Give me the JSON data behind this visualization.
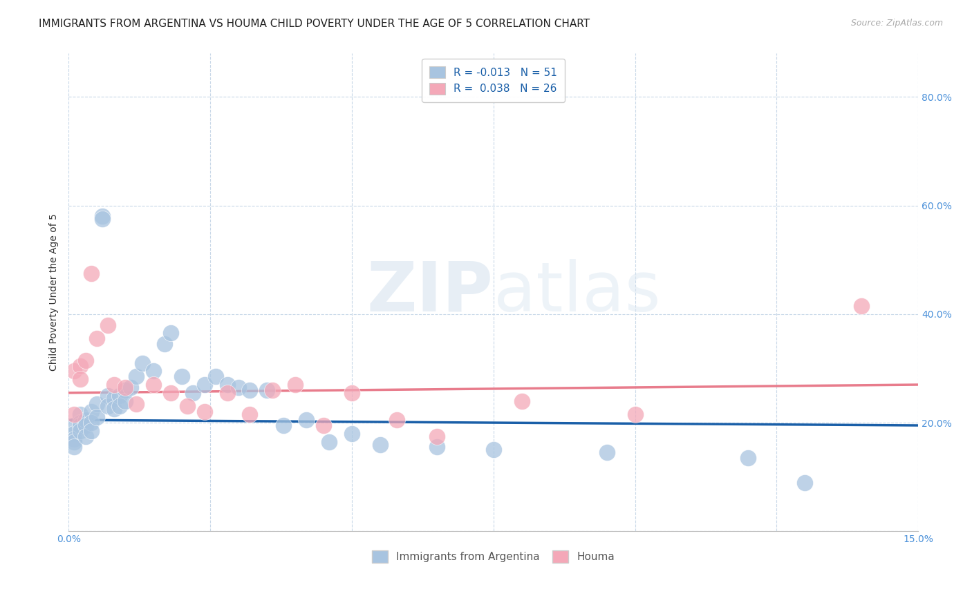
{
  "title": "IMMIGRANTS FROM ARGENTINA VS HOUMA CHILD POVERTY UNDER THE AGE OF 5 CORRELATION CHART",
  "source": "Source: ZipAtlas.com",
  "ylabel": "Child Poverty Under the Age of 5",
  "xlim": [
    0.0,
    0.15
  ],
  "ylim": [
    0.0,
    0.88
  ],
  "xticks": [
    0.0,
    0.025,
    0.05,
    0.075,
    0.1,
    0.125,
    0.15
  ],
  "xticklabels": [
    "0.0%",
    "",
    "",
    "",
    "",
    "",
    "15.0%"
  ],
  "yticks": [
    0.0,
    0.2,
    0.4,
    0.6,
    0.8
  ],
  "yticklabels": [
    "",
    "20.0%",
    "40.0%",
    "60.0%",
    "80.0%"
  ],
  "blue_R": "-0.013",
  "blue_N": "51",
  "pink_R": "0.038",
  "pink_N": "26",
  "legend1_label": "Immigrants from Argentina",
  "legend2_label": "Houma",
  "blue_color": "#a8c4e0",
  "pink_color": "#f4a8b8",
  "blue_line_color": "#1a5fa8",
  "pink_line_color": "#e87c8c",
  "axis_color": "#4a90d9",
  "watermark_zip": "ZIP",
  "watermark_atlas": "atlas",
  "blue_scatter_x": [
    0.001,
    0.001,
    0.001,
    0.001,
    0.001,
    0.002,
    0.002,
    0.002,
    0.002,
    0.003,
    0.003,
    0.003,
    0.004,
    0.004,
    0.004,
    0.005,
    0.005,
    0.006,
    0.006,
    0.007,
    0.007,
    0.008,
    0.008,
    0.009,
    0.009,
    0.01,
    0.01,
    0.011,
    0.012,
    0.013,
    0.015,
    0.017,
    0.018,
    0.02,
    0.022,
    0.024,
    0.026,
    0.028,
    0.03,
    0.032,
    0.035,
    0.038,
    0.042,
    0.046,
    0.05,
    0.055,
    0.065,
    0.075,
    0.095,
    0.12,
    0.13
  ],
  "blue_scatter_y": [
    0.195,
    0.18,
    0.17,
    0.165,
    0.155,
    0.215,
    0.2,
    0.195,
    0.185,
    0.205,
    0.195,
    0.175,
    0.22,
    0.2,
    0.185,
    0.235,
    0.21,
    0.58,
    0.575,
    0.25,
    0.23,
    0.245,
    0.225,
    0.25,
    0.23,
    0.26,
    0.24,
    0.265,
    0.285,
    0.31,
    0.295,
    0.345,
    0.365,
    0.285,
    0.255,
    0.27,
    0.285,
    0.27,
    0.265,
    0.26,
    0.26,
    0.195,
    0.205,
    0.165,
    0.18,
    0.16,
    0.155,
    0.15,
    0.145,
    0.135,
    0.09
  ],
  "pink_scatter_x": [
    0.001,
    0.001,
    0.002,
    0.002,
    0.003,
    0.004,
    0.005,
    0.007,
    0.008,
    0.01,
    0.012,
    0.015,
    0.018,
    0.021,
    0.024,
    0.028,
    0.032,
    0.036,
    0.04,
    0.045,
    0.05,
    0.058,
    0.065,
    0.08,
    0.1,
    0.14
  ],
  "pink_scatter_y": [
    0.295,
    0.215,
    0.305,
    0.28,
    0.315,
    0.475,
    0.355,
    0.38,
    0.27,
    0.265,
    0.235,
    0.27,
    0.255,
    0.23,
    0.22,
    0.255,
    0.215,
    0.26,
    0.27,
    0.195,
    0.255,
    0.205,
    0.175,
    0.24,
    0.215,
    0.415
  ],
  "blue_trend_x": [
    0.0,
    0.15
  ],
  "blue_trend_y": [
    0.205,
    0.195
  ],
  "pink_trend_x": [
    0.0,
    0.15
  ],
  "pink_trend_y": [
    0.255,
    0.27
  ],
  "background_color": "#ffffff",
  "grid_color": "#c8d8e8",
  "title_fontsize": 11,
  "axis_label_fontsize": 10,
  "tick_fontsize": 10,
  "dot_size": 300
}
